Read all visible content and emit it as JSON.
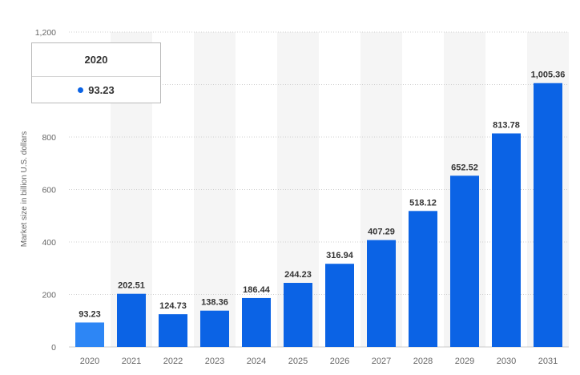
{
  "chart_data": {
    "type": "bar",
    "categories": [
      "2020",
      "2021",
      "2022",
      "2023",
      "2024",
      "2025",
      "2026",
      "2027",
      "2028",
      "2029",
      "2030",
      "2031"
    ],
    "values": [
      93.23,
      202.51,
      124.73,
      138.36,
      186.44,
      244.23,
      316.94,
      407.29,
      518.12,
      652.52,
      813.78,
      1005.36
    ],
    "value_labels": [
      "93.23",
      "202.51",
      "124.73",
      "138.36",
      "186.44",
      "244.23",
      "316.94",
      "407.29",
      "518.12",
      "652.52",
      "813.78",
      "1,005.36"
    ],
    "ylabel": "Market size in billion U.S. dollars",
    "ylim": [
      0,
      1200
    ],
    "y_ticks": [
      0,
      200,
      400,
      600,
      800,
      1200
    ],
    "y_tick_labels": [
      "0",
      "200",
      "400",
      "600",
      "800",
      "1,200"
    ],
    "grid": true,
    "highlighted_category": "2020"
  },
  "colors": {
    "bar": "#0b63e5",
    "bar_highlight": "#2d86f5",
    "grid": "#d0d0d0",
    "band": "#f5f5f5",
    "tooltip_dot": "#0b63e5"
  },
  "tooltip": {
    "title": "2020",
    "value": "93.23"
  }
}
